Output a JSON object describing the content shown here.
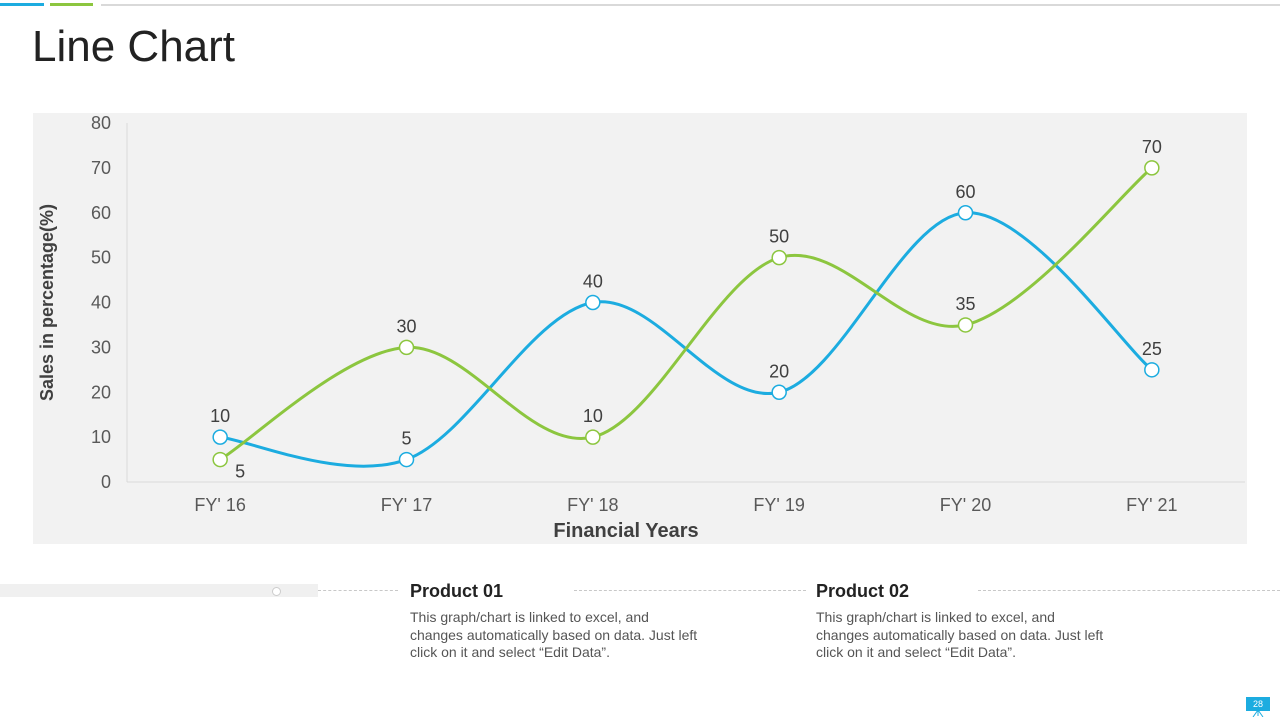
{
  "slide": {
    "title": "Line Chart",
    "page_number": "28",
    "accent_colors": {
      "blue": "#1cace0",
      "green": "#8cc63f"
    }
  },
  "chart_data": {
    "type": "line",
    "title": "",
    "xlabel": "Financial Years",
    "ylabel": "Sales in percentage(%)",
    "categories": [
      "FY' 16",
      "FY' 17",
      "FY' 18",
      "FY' 19",
      "FY' 20",
      "FY' 21"
    ],
    "y_ticks": [
      0,
      10,
      20,
      30,
      40,
      50,
      60,
      70,
      80
    ],
    "ylim": [
      0,
      80
    ],
    "grid": false,
    "smooth": true,
    "series": [
      {
        "values": [
          10,
          5,
          40,
          20,
          60,
          25
        ],
        "color": "#1cace0"
      },
      {
        "values": [
          5,
          30,
          10,
          50,
          35,
          70
        ],
        "color": "#8cc63f"
      }
    ]
  },
  "products": [
    {
      "title": "Product 01",
      "description": "This graph/chart is linked to excel, and changes automatically based on data. Just left click on it and select “Edit Data”."
    },
    {
      "title": "Product 02",
      "description": "This graph/chart is linked to excel, and changes automatically based on data. Just left click on it and select “Edit Data”."
    }
  ]
}
